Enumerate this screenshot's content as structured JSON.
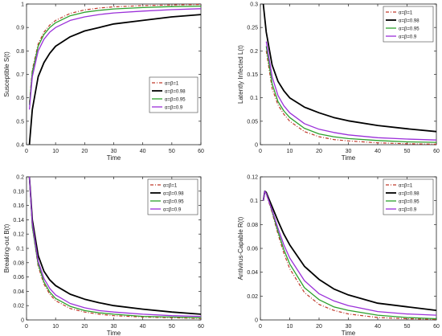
{
  "chart_data": [
    {
      "type": "line",
      "xlabel": "Time",
      "ylabel": "Susceptible S(t)",
      "xlim": [
        0,
        60
      ],
      "ylim": [
        0.4,
        1.0
      ],
      "xticks": [
        0,
        10,
        20,
        30,
        40,
        50,
        60
      ],
      "yticks": [
        0.4,
        0.5,
        0.6,
        0.7,
        0.8,
        0.9,
        1.0
      ],
      "ytick_labels": [
        "0.4",
        "0.5",
        "0.6",
        "0.7",
        "0.8",
        "0.9",
        "1"
      ],
      "legend_position": "right",
      "series": [
        {
          "name": "α=β=1",
          "x": [
            1,
            2,
            4,
            6,
            8,
            10,
            15,
            20,
            25,
            30,
            40,
            50,
            60
          ],
          "values": [
            0.58,
            0.72,
            0.83,
            0.88,
            0.91,
            0.93,
            0.96,
            0.975,
            0.983,
            0.988,
            0.993,
            0.996,
            0.998
          ]
        },
        {
          "name": "α=β=0.98",
          "x": [
            1,
            2,
            4,
            6,
            8,
            10,
            15,
            20,
            25,
            30,
            40,
            50,
            60
          ],
          "values": [
            0.4,
            0.55,
            0.69,
            0.75,
            0.79,
            0.82,
            0.86,
            0.885,
            0.9,
            0.915,
            0.93,
            0.945,
            0.955
          ]
        },
        {
          "name": "α=β=0.95",
          "x": [
            1,
            2,
            4,
            6,
            8,
            10,
            15,
            20,
            25,
            30,
            40,
            50,
            60
          ],
          "values": [
            0.57,
            0.71,
            0.82,
            0.87,
            0.9,
            0.92,
            0.95,
            0.965,
            0.973,
            0.979,
            0.985,
            0.989,
            0.991
          ]
        },
        {
          "name": "α=β=0.9",
          "x": [
            1,
            2,
            4,
            6,
            8,
            10,
            15,
            20,
            25,
            30,
            40,
            50,
            60
          ],
          "values": [
            0.55,
            0.69,
            0.8,
            0.85,
            0.88,
            0.9,
            0.93,
            0.945,
            0.955,
            0.962,
            0.97,
            0.976,
            0.98
          ]
        }
      ]
    },
    {
      "type": "line",
      "xlabel": "Time",
      "ylabel": "Latently Infected L(t)",
      "xlim": [
        0,
        60
      ],
      "ylim": [
        0,
        0.3
      ],
      "xticks": [
        0,
        10,
        20,
        30,
        40,
        50,
        60
      ],
      "yticks": [
        0,
        0.05,
        0.1,
        0.15,
        0.2,
        0.25,
        0.3
      ],
      "ytick_labels": [
        "0",
        "0.05",
        "0.1",
        "0.15",
        "0.2",
        "0.25",
        "0.3"
      ],
      "legend_position": "top-right",
      "series": [
        {
          "name": "α=β=1",
          "x": [
            2,
            4,
            6,
            8,
            10,
            15,
            20,
            25,
            30,
            40,
            50,
            60
          ],
          "values": [
            0.2,
            0.12,
            0.085,
            0.065,
            0.05,
            0.028,
            0.017,
            0.011,
            0.008,
            0.004,
            0.002,
            0.001
          ]
        },
        {
          "name": "α=β=0.98",
          "x": [
            1,
            2,
            4,
            6,
            8,
            10,
            15,
            20,
            25,
            30,
            40,
            50,
            60
          ],
          "values": [
            0.3,
            0.24,
            0.17,
            0.135,
            0.115,
            0.1,
            0.08,
            0.068,
            0.058,
            0.051,
            0.041,
            0.034,
            0.028
          ]
        },
        {
          "name": "α=β=0.95",
          "x": [
            2,
            4,
            6,
            8,
            10,
            15,
            20,
            25,
            30,
            40,
            50,
            60
          ],
          "values": [
            0.21,
            0.13,
            0.092,
            0.072,
            0.058,
            0.035,
            0.023,
            0.017,
            0.013,
            0.009,
            0.006,
            0.005
          ]
        },
        {
          "name": "α=β=0.9",
          "x": [
            2,
            4,
            6,
            8,
            10,
            15,
            20,
            25,
            30,
            40,
            50,
            60
          ],
          "values": [
            0.22,
            0.145,
            0.105,
            0.083,
            0.068,
            0.045,
            0.033,
            0.026,
            0.021,
            0.015,
            0.012,
            0.01
          ]
        }
      ]
    },
    {
      "type": "line",
      "xlabel": "Time",
      "ylabel": "Breaking-out B(t)",
      "xlim": [
        0,
        60
      ],
      "ylim": [
        0,
        0.2
      ],
      "xticks": [
        0,
        10,
        20,
        30,
        40,
        50,
        60
      ],
      "yticks": [
        0,
        0.02,
        0.04,
        0.06,
        0.08,
        0.1,
        0.12,
        0.14,
        0.16,
        0.18,
        0.2
      ],
      "ytick_labels": [
        "0",
        "0.02",
        "0.04",
        "0.06",
        "0.08",
        "0.1",
        "0.12",
        "0.14",
        "0.16",
        "0.18",
        "0.2"
      ],
      "legend_position": "top-right",
      "series": [
        {
          "name": "α=β=1",
          "x": [
            1,
            2,
            4,
            6,
            8,
            10,
            15,
            20,
            25,
            30,
            40,
            50,
            60
          ],
          "values": [
            0.2,
            0.13,
            0.075,
            0.05,
            0.036,
            0.027,
            0.016,
            0.011,
            0.008,
            0.006,
            0.004,
            0.003,
            0.002
          ]
        },
        {
          "name": "α=β=0.98",
          "x": [
            1,
            2,
            4,
            6,
            8,
            10,
            15,
            20,
            25,
            30,
            40,
            50,
            60
          ],
          "values": [
            0.2,
            0.14,
            0.09,
            0.068,
            0.056,
            0.048,
            0.036,
            0.029,
            0.024,
            0.02,
            0.015,
            0.011,
            0.008
          ]
        },
        {
          "name": "α=β=0.95",
          "x": [
            1,
            2,
            4,
            6,
            8,
            10,
            15,
            20,
            25,
            30,
            40,
            50,
            60
          ],
          "values": [
            0.2,
            0.13,
            0.078,
            0.053,
            0.039,
            0.03,
            0.019,
            0.013,
            0.01,
            0.008,
            0.005,
            0.004,
            0.003
          ]
        },
        {
          "name": "α=β=0.9",
          "x": [
            1,
            2,
            4,
            6,
            8,
            10,
            15,
            20,
            25,
            30,
            40,
            50,
            60
          ],
          "values": [
            0.2,
            0.135,
            0.082,
            0.058,
            0.044,
            0.035,
            0.023,
            0.017,
            0.013,
            0.011,
            0.008,
            0.006,
            0.005
          ]
        }
      ]
    },
    {
      "type": "line",
      "xlabel": "Time",
      "ylabel": "Antivirus-Capable R(t)",
      "xlim": [
        0,
        60
      ],
      "ylim": [
        0,
        0.12
      ],
      "xticks": [
        0,
        10,
        20,
        30,
        40,
        50,
        60
      ],
      "yticks": [
        0,
        0.02,
        0.04,
        0.06,
        0.08,
        0.1,
        0.12
      ],
      "ytick_labels": [
        "0",
        "0.02",
        "0.04",
        "0.06",
        "0.08",
        "0.1",
        "0.12"
      ],
      "legend_position": "top-right",
      "series": [
        {
          "name": "α=β=1",
          "x": [
            1,
            1.5,
            2,
            3,
            4,
            6,
            8,
            10,
            15,
            20,
            25,
            30,
            40,
            50,
            60
          ],
          "values": [
            0.1,
            0.108,
            0.106,
            0.098,
            0.09,
            0.072,
            0.056,
            0.043,
            0.023,
            0.013,
            0.008,
            0.005,
            0.002,
            0.001,
            0.0005
          ]
        },
        {
          "name": "α=β=0.98",
          "x": [
            1,
            1.5,
            2,
            3,
            4,
            6,
            8,
            10,
            15,
            20,
            25,
            30,
            40,
            50,
            60
          ],
          "values": [
            0.1,
            0.108,
            0.107,
            0.101,
            0.095,
            0.083,
            0.072,
            0.063,
            0.045,
            0.034,
            0.026,
            0.021,
            0.014,
            0.011,
            0.008
          ]
        },
        {
          "name": "α=β=0.95",
          "x": [
            1,
            1.5,
            2,
            3,
            4,
            6,
            8,
            10,
            15,
            20,
            25,
            30,
            40,
            50,
            60
          ],
          "values": [
            0.1,
            0.108,
            0.106,
            0.099,
            0.091,
            0.074,
            0.059,
            0.047,
            0.027,
            0.017,
            0.011,
            0.008,
            0.004,
            0.002,
            0.001
          ]
        },
        {
          "name": "α=β=0.9",
          "x": [
            1,
            1.5,
            2,
            3,
            4,
            6,
            8,
            10,
            15,
            20,
            25,
            30,
            40,
            50,
            60
          ],
          "values": [
            0.1,
            0.108,
            0.106,
            0.099,
            0.092,
            0.077,
            0.063,
            0.052,
            0.033,
            0.022,
            0.016,
            0.012,
            0.007,
            0.005,
            0.004
          ]
        }
      ]
    }
  ],
  "style": {
    "colors": [
      "#c0392b",
      "#000000",
      "#2ca02c",
      "#9b30d9"
    ],
    "dashes": [
      "4,2,1,2",
      "",
      "",
      ""
    ],
    "widths": [
      1.2,
      1.8,
      1.3,
      1.3
    ],
    "axis_color": "#222222",
    "grid": false
  }
}
